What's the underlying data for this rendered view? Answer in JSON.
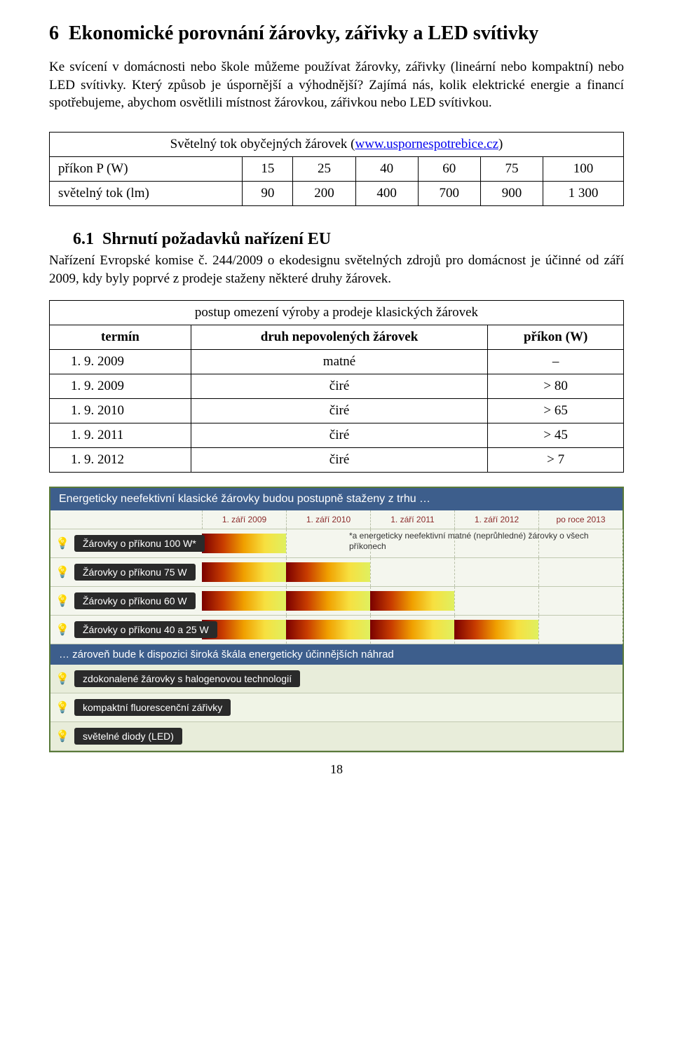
{
  "section": {
    "number": "6",
    "title": "Ekonomické porovnání žárovky, zářivky a LED svítivky"
  },
  "para1": "Ke svícení v domácnosti nebo škole můžeme používat žárovky, zářivky (lineární nebo kompaktní) nebo LED svítivky. Který způsob je úspornější a výhodnější? Zajímá nás, kolik elektrické energie a financí spotřebujeme, abychom osvětlili místnost žárovkou, zářivkou nebo LED svítivkou.",
  "table1": {
    "caption_prefix": "Světelný tok obyčejných žárovek (",
    "caption_link": "www.uspornespotrebice.cz",
    "caption_suffix": ")",
    "rows": [
      {
        "head": "příkon P (W)",
        "vals": [
          "15",
          "25",
          "40",
          "60",
          "75",
          "100"
        ]
      },
      {
        "head": "světelný tok (lm)",
        "vals": [
          "90",
          "200",
          "400",
          "700",
          "900",
          "1 300"
        ]
      }
    ]
  },
  "subsection": {
    "number": "6.1",
    "title": "Shrnutí požadavků nařízení EU"
  },
  "para2": "Nařízení Evropské komise č. 244/2009 o ekodesignu světelných zdrojů pro domácnost je účinné od září 2009, kdy byly poprvé z prodeje staženy některé druhy žárovek.",
  "table2": {
    "caption": "postup omezení výroby a prodeje klasických žárovek",
    "headers": [
      "termín",
      "druh nepovolených žárovek",
      "příkon (W)"
    ],
    "rows": [
      [
        "1. 9. 2009",
        "matné",
        "–"
      ],
      [
        "1. 9. 2009",
        "čiré",
        "> 80"
      ],
      [
        "1. 9. 2010",
        "čiré",
        "> 65"
      ],
      [
        "1. 9. 2011",
        "čiré",
        "> 45"
      ],
      [
        "1. 9. 2012",
        "čiré",
        "> 7"
      ]
    ]
  },
  "infographic": {
    "header": "Energeticky neefektivní klasické žárovky budou postupně staženy z trhu …",
    "dates": [
      "1. září 2009",
      "1. září 2010",
      "1. září 2011",
      "1. září 2012",
      "po roce 2013"
    ],
    "footnote": "*a energeticky neefektivní matné (neprůhledné) žárovky o všech příkonech",
    "bulb_rows": [
      {
        "label": "Žárovky o příkonu 100 W*",
        "bar_units": 1
      },
      {
        "label": "Žárovky o příkonu 75 W",
        "bar_units": 2
      },
      {
        "label": "Žárovky o příkonu 60 W",
        "bar_units": 3
      },
      {
        "label": "Žárovky o příkonu 40 a 25 W",
        "bar_units": 4
      }
    ],
    "gradient_colors": [
      "#7a0000",
      "#c83c00",
      "#f0a000",
      "#f7e040",
      "#dff060"
    ],
    "row_bg": "#f4f6ee",
    "header_bg": "#3d5e8c",
    "header_color": "#ffffff",
    "label_bg": "#2a2a2a",
    "border_color": "#5a7a3a",
    "sub_header": "… zároveň bude k dispozici široká škála energeticky účinnějších náhrad",
    "alt_rows": [
      "zdokonalené žárovky s halogenovou technologií",
      "kompaktní fluorescenční zářivky",
      "světelné diody (LED)"
    ]
  },
  "pagenum": "18"
}
